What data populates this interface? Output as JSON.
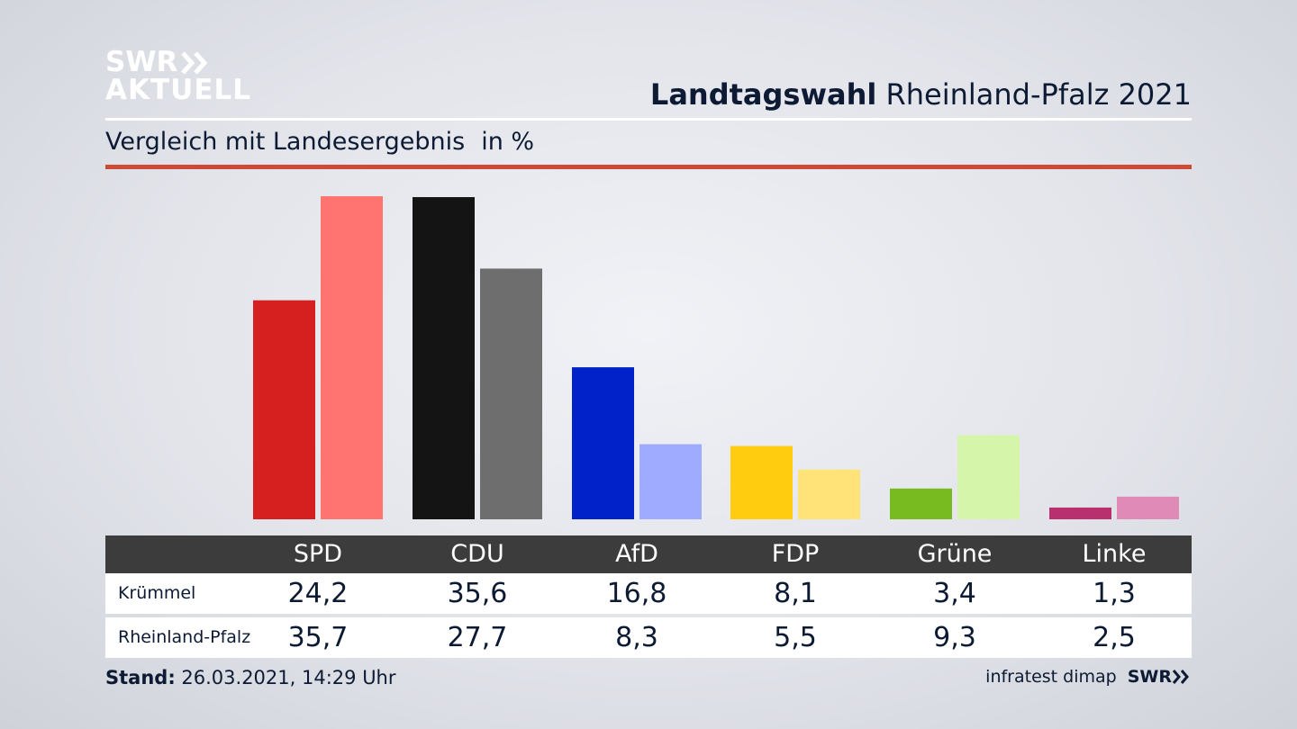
{
  "logo": {
    "line1": "SWR",
    "line2": "AKTUELL"
  },
  "header": {
    "title_bold": "Landtagswahl",
    "title_rest": "Rheinland-Pfalz 2021"
  },
  "subtitle": {
    "text": "Vergleich mit Landesergebnis",
    "unit": "in %"
  },
  "table": {
    "rows": [
      {
        "label": "Krümmel",
        "values": [
          "24,2",
          "35,6",
          "16,8",
          "8,1",
          "3,4",
          "1,3"
        ]
      },
      {
        "label": "Rheinland-Pfalz",
        "values": [
          "35,7",
          "27,7",
          "8,3",
          "5,5",
          "9,3",
          "2,5"
        ]
      }
    ]
  },
  "footer": {
    "stand_label": "Stand:",
    "stand_value": "26.03.2021, 14:29 Uhr",
    "source": "infratest dimap",
    "brand": "SWR"
  },
  "chart_data": {
    "type": "bar",
    "title": "Landtagswahl Rheinland-Pfalz 2021",
    "subtitle": "Vergleich mit Landesergebnis in %",
    "categories": [
      "SPD",
      "CDU",
      "AfD",
      "FDP",
      "Grüne",
      "Linke"
    ],
    "series": [
      {
        "name": "Krümmel",
        "values": [
          24.2,
          35.6,
          16.8,
          8.1,
          3.4,
          1.3
        ],
        "colors": [
          "#d62020",
          "#141414",
          "#0022c8",
          "#ffcc10",
          "#78bb20",
          "#b8306e"
        ]
      },
      {
        "name": "Rheinland-Pfalz",
        "values": [
          35.7,
          27.7,
          8.3,
          5.5,
          9.3,
          2.5
        ],
        "colors": [
          "#ff7470",
          "#6e6e6e",
          "#9fabff",
          "#ffe278",
          "#d5f5ab",
          "#e08ab8"
        ]
      }
    ],
    "ylim": [
      0,
      36
    ]
  }
}
